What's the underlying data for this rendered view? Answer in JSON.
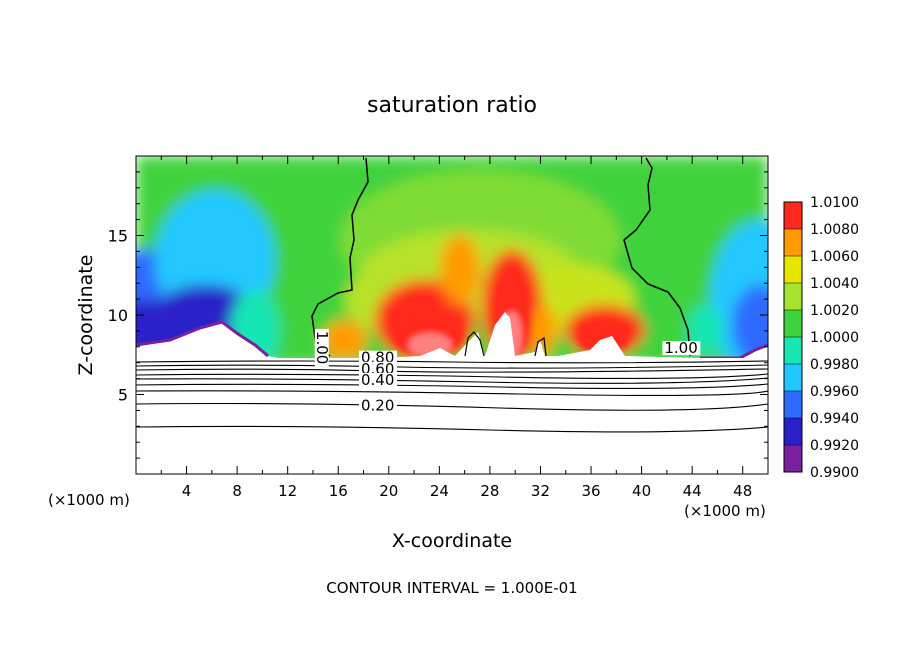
{
  "chart_data": {
    "type": "heatmap",
    "title": "saturation ratio",
    "xlabel": "X-coordinate",
    "ylabel": "Z-coordinate",
    "x_unit_left": "(×1000 m)",
    "x_unit_right": "(×1000 m)",
    "footer": "CONTOUR INTERVAL = 1.000E-01",
    "xlim": [
      0,
      50
    ],
    "ylim": [
      0,
      20
    ],
    "xticks": [
      4,
      8,
      12,
      16,
      20,
      24,
      28,
      32,
      36,
      40,
      44,
      48
    ],
    "yticks": [
      5,
      10,
      15
    ],
    "colorbar": {
      "levels": [
        "0.9900",
        "0.9920",
        "0.9940",
        "0.9960",
        "0.9980",
        "1.0000",
        "1.0020",
        "1.0040",
        "1.0060",
        "1.0080",
        "1.0100"
      ],
      "colors": [
        "#7a1fa0",
        "#2a20c8",
        "#2f6bff",
        "#20c8ff",
        "#19e6b4",
        "#3fd23c",
        "#a6e22e",
        "#e8e600",
        "#ff9b00",
        "#ff2a1c",
        "#ff8080"
      ]
    },
    "contour_labels": [
      {
        "text": "1.00",
        "x": 14.3,
        "z": 9.0,
        "rot": 90
      },
      {
        "text": "1.00",
        "x": 41.8,
        "z": 7.6,
        "rot": 0
      },
      {
        "text": "0.80",
        "x": 17.8,
        "z": 7.0,
        "rot": 0
      },
      {
        "text": "0.60",
        "x": 17.8,
        "z": 6.3,
        "rot": 0
      },
      {
        "text": "0.40",
        "x": 17.8,
        "z": 5.6,
        "rot": 0
      },
      {
        "text": "0.20",
        "x": 17.8,
        "z": 4.0,
        "rot": 0
      }
    ]
  }
}
